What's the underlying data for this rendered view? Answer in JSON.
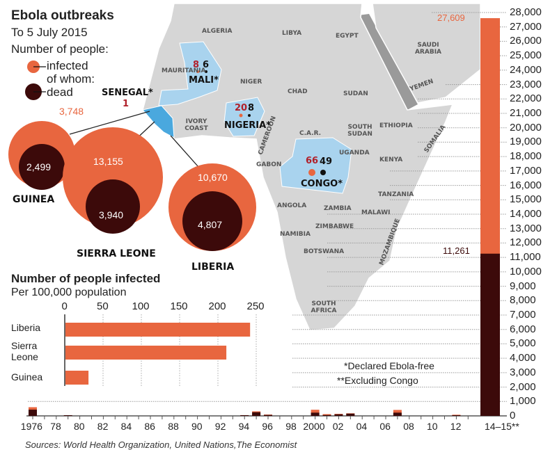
{
  "header": {
    "title": "Ebola outbreaks",
    "subtitle": "To 5 July 2015",
    "legend_title": "Number of people:",
    "legend_infected": "infected",
    "legend_of_whom": "of whom:",
    "legend_dead": "dead"
  },
  "colors": {
    "infected": "#e8663f",
    "dead": "#3c0a0a",
    "affected_country": "#a9d3ee",
    "hot_country": "#4aa8de",
    "land": "#d4d4d4"
  },
  "map": {
    "labels": [
      "ALGERIA",
      "LIBYA",
      "EGYPT",
      "SAUDI ARABIA",
      "YEMEN",
      "MAURITANIA",
      "NIGER",
      "CHAD",
      "SUDAN",
      "IVORY COAST",
      "SOUTH SUDAN",
      "ETHIOPIA",
      "C.A.R.",
      "CAMEROON",
      "SOMALIA",
      "UGANDA",
      "KENYA",
      "GABON",
      "TANZANIA",
      "ANGOLA",
      "ZAMBIA",
      "MALAWI",
      "NAMIBIA",
      "ZIMBABWE",
      "MOZAMBIQUE",
      "BOTSWANA",
      "SOUTH AFRICA"
    ],
    "countries": [
      {
        "name": "MALI*",
        "infected": "8",
        "dead": "6"
      },
      {
        "name": "SENEGAL*",
        "infected": "1"
      },
      {
        "name": "NIGERIA*",
        "infected": "20",
        "dead": "8"
      },
      {
        "name": "CONGO*",
        "infected": "66",
        "dead": "49"
      },
      {
        "name": "GUINEA",
        "infected": "3,748",
        "dead": "2,499"
      },
      {
        "name": "SIERRA LEONE",
        "infected": "13,155",
        "dead": "3,940"
      },
      {
        "name": "LIBERIA",
        "infected": "10,670",
        "dead": "4,807"
      }
    ]
  },
  "chart_data": [
    {
      "type": "bar",
      "orientation": "horizontal",
      "title": "Number of people infected",
      "subtitle": "Per 100,000 population",
      "categories": [
        "Liberia",
        "Sierra Leone",
        "Guinea"
      ],
      "values": [
        242,
        211,
        31
      ],
      "xlim": [
        0,
        250
      ],
      "xticks": [
        "0",
        "50",
        "100",
        "150",
        "200",
        "250"
      ],
      "grid": true
    },
    {
      "type": "bar",
      "stacked": "overlay",
      "x_tick_labels": [
        "1976",
        "78",
        "80",
        "82",
        "84",
        "86",
        "88",
        "90",
        "92",
        "94",
        "96",
        "98",
        "2000",
        "02",
        "04",
        "06",
        "08",
        "10",
        "12",
        "14–15**"
      ],
      "categories": [
        "1976",
        "1979",
        "1994",
        "1995",
        "1996",
        "2000",
        "2001",
        "2002",
        "2003",
        "2007",
        "2012",
        "14–15"
      ],
      "series": [
        {
          "name": "infected",
          "values": [
            602,
            1,
            52,
            315,
            91,
            425,
            120,
            140,
            178,
            413,
            80,
            27609
          ]
        },
        {
          "name": "dead",
          "values": [
            431,
            1,
            31,
            254,
            66,
            224,
            60,
            110,
            157,
            224,
            40,
            11261
          ]
        }
      ],
      "data_labels": {
        "infected_14_15": "27,609",
        "dead_14_15": "11,261"
      },
      "ylim": [
        0,
        28000
      ],
      "yticks": [
        "0",
        "1,000",
        "2,000",
        "3,000",
        "4,000",
        "5,000",
        "6,000",
        "7,000",
        "8,000",
        "9,000",
        "10,000",
        "11,000",
        "12,000",
        "13,000",
        "14,000",
        "15,000",
        "16,000",
        "17,000",
        "18,000",
        "19,000",
        "20,000",
        "21,000",
        "22,000",
        "23,000",
        "24,000",
        "25,000",
        "26,000",
        "27,000",
        "28,000"
      ],
      "yaxis_position": "right",
      "grid": true,
      "notes": [
        "*Declared Ebola-free",
        "**Excluding Congo"
      ]
    }
  ],
  "footer": {
    "sources": "Sources: World Health Organization, United Nations,The Economist"
  }
}
